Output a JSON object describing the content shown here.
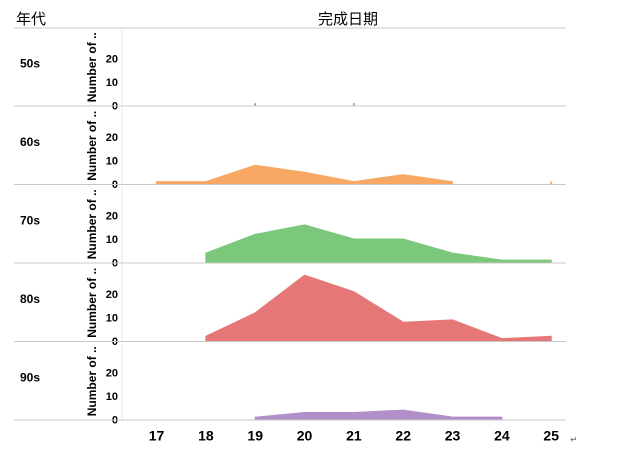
{
  "chart_data": {
    "type": "area",
    "header": {
      "row_field": "年代",
      "column_field": "完成日期"
    },
    "y_axis_label": "Number of ..",
    "y_ticks": [
      0,
      10,
      20
    ],
    "ylim": [
      0,
      30
    ],
    "x_ticks": [
      17,
      18,
      19,
      20,
      21,
      22,
      23,
      24,
      25
    ],
    "xlim": [
      16.3,
      25.3
    ],
    "grid": false,
    "rows": [
      {
        "label": "50s",
        "color": "#5b9bd5",
        "style": "bars",
        "points": [
          [
            19,
            1
          ],
          [
            21,
            1
          ]
        ]
      },
      {
        "label": "60s",
        "color": "#f9a863",
        "style": "area",
        "points": [
          [
            17,
            1
          ],
          [
            18,
            1
          ],
          [
            19,
            8
          ],
          [
            20,
            5
          ],
          [
            21,
            1
          ],
          [
            22,
            4
          ],
          [
            23,
            1
          ]
        ],
        "extra_bars": [
          [
            25,
            1
          ]
        ]
      },
      {
        "label": "70s",
        "color": "#7bc77b",
        "style": "area",
        "points": [
          [
            18,
            4
          ],
          [
            19,
            12
          ],
          [
            20,
            16
          ],
          [
            21,
            10
          ],
          [
            22,
            10
          ],
          [
            23,
            4
          ],
          [
            24,
            1
          ],
          [
            25,
            1
          ]
        ]
      },
      {
        "label": "80s",
        "color": "#e57876",
        "style": "area",
        "points": [
          [
            18,
            2
          ],
          [
            19,
            12
          ],
          [
            20,
            28
          ],
          [
            21,
            21
          ],
          [
            22,
            8
          ],
          [
            23,
            9
          ],
          [
            24,
            1
          ],
          [
            25,
            2
          ]
        ]
      },
      {
        "label": "90s",
        "color": "#b08fcb",
        "style": "area",
        "points": [
          [
            19,
            1
          ],
          [
            20,
            3
          ],
          [
            21,
            3
          ],
          [
            22,
            4
          ],
          [
            23,
            1
          ],
          [
            24,
            1
          ]
        ]
      }
    ],
    "trailing_mark": "↵"
  }
}
